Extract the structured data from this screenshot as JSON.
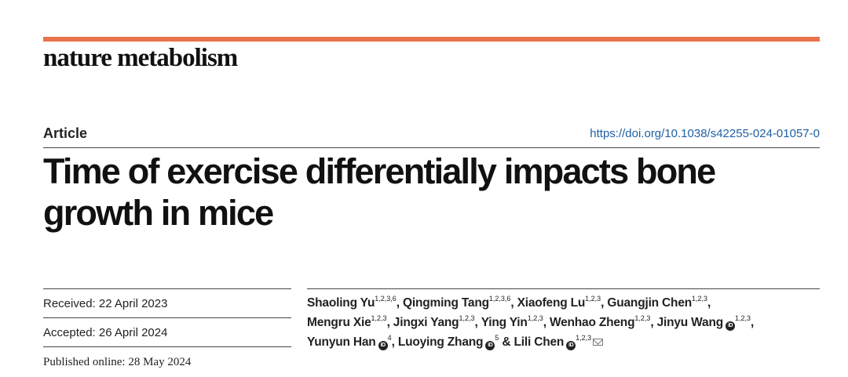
{
  "journal": {
    "name": "nature metabolism",
    "accent_color": "#e8734a"
  },
  "article": {
    "type": "Article",
    "doi": "https://doi.org/10.1038/s42255-024-01057-0",
    "title": "Time of exercise differentially impacts bone growth in mice"
  },
  "dates": {
    "received": "Received: 22 April 2023",
    "accepted": "Accepted: 26 April 2024",
    "published": "Published online: 28 May 2024"
  },
  "authors": [
    {
      "name": "Shaoling Yu",
      "affil": "1,2,3,6",
      "sep": ", "
    },
    {
      "name": "Qingming Tang",
      "affil": "1,2,3,6",
      "sep": ", "
    },
    {
      "name": "Xiaofeng Lu",
      "affil": "1,2,3",
      "sep": ", "
    },
    {
      "name": "Guangjin Chen",
      "affil": "1,2,3",
      "sep": ", "
    },
    {
      "name": "Mengru Xie",
      "affil": "1,2,3",
      "sep": ", "
    },
    {
      "name": "Jingxi Yang",
      "affil": "1,2,3",
      "sep": ", "
    },
    {
      "name": "Ying Yin",
      "affil": "1,2,3",
      "sep": ", "
    },
    {
      "name": "Wenhao Zheng",
      "affil": "1,2,3",
      "sep": ", "
    },
    {
      "name": "Jinyu Wang",
      "affil": "1,2,3",
      "sep": ", "
    },
    {
      "name": "Yunyun Han",
      "affil": "4",
      "sep": ", "
    },
    {
      "name": "Luoying Zhang",
      "affil": "5",
      "sep": " & "
    },
    {
      "name": "Lili Chen",
      "affil": "1,2,3",
      "sep": ""
    }
  ]
}
